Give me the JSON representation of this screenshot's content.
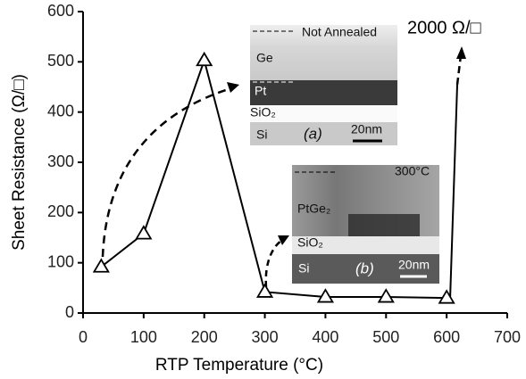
{
  "chart_data": {
    "type": "line",
    "x_label": "RTP Temperature (°C)",
    "y_label": "Sheet Resistance (Ω/□)",
    "x": [
      30,
      100,
      200,
      300,
      400,
      500,
      600
    ],
    "values": [
      92,
      158,
      503,
      42,
      32,
      32,
      30
    ],
    "color": "#000000",
    "xlim": [
      0,
      700
    ],
    "xticks": [
      0,
      100,
      200,
      300,
      400,
      500,
      600,
      700
    ],
    "ylim": [
      0,
      600
    ],
    "yticks": [
      0,
      100,
      200,
      300,
      400,
      500,
      600
    ],
    "annotation": "2000 Ω/□",
    "inset_a": {
      "condition": "Not Annealed",
      "layers": [
        "Ge",
        "Pt",
        "SiO₂",
        "Si"
      ],
      "tag": "(a)",
      "scale": "20nm"
    },
    "inset_b": {
      "condition": "300°C",
      "layers": [
        "PtGe₂",
        "SiO₂",
        "Si"
      ],
      "tag": "(b)",
      "scale": "20nm"
    }
  }
}
